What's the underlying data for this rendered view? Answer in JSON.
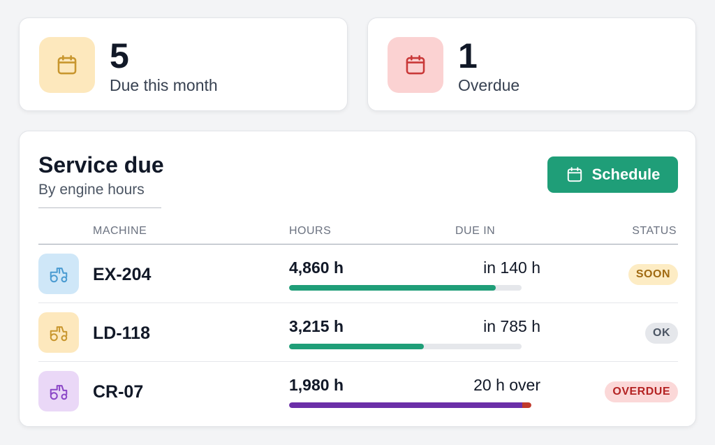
{
  "stats": [
    {
      "value": "5",
      "label": "Due this month",
      "icon": "calendar-icon",
      "icon_color": "#c8962e",
      "icon_bg": "#fde8bd"
    },
    {
      "value": "1",
      "label": "Overdue",
      "icon": "calendar-icon",
      "icon_color": "#c93838",
      "icon_bg": "#fbd2d2"
    }
  ],
  "panel": {
    "title": "Service due",
    "subtitle": "By engine hours",
    "schedule_label": "Schedule",
    "schedule_icon": "calendar-icon",
    "accent": "#1f9e78"
  },
  "table": {
    "headers": {
      "machine": "MACHINE",
      "hours": "HOURS",
      "due_in": "DUE IN",
      "status": "STATUS"
    },
    "rows": [
      {
        "machine": "EX-204",
        "icon": "tractor-icon",
        "icon_color": "#4a9bd1",
        "icon_bg": "#cfe7f8",
        "hours": "4,860 h",
        "due_in": "in 140 h",
        "progress": 0.89,
        "bar_color": "#1f9e78",
        "status": "SOON",
        "status_color": "#a06a12",
        "status_bg": "#fdecc4"
      },
      {
        "machine": "LD-118",
        "icon": "tractor-icon",
        "icon_color": "#c8962e",
        "icon_bg": "#fde8bd",
        "hours": "3,215 h",
        "due_in": "in 785 h",
        "progress": 0.58,
        "bar_color": "#1f9e78",
        "status": "OK",
        "status_color": "#4b5563",
        "status_bg": "#e5e7eb"
      },
      {
        "machine": "CR-07",
        "icon": "tractor-icon",
        "icon_color": "#8b47c7",
        "icon_bg": "#ead8f7",
        "hours": "1,980 h",
        "due_in": "20 h over",
        "progress": 1.0,
        "overage": 0.01,
        "bar_color": "#6b2fa8",
        "over_color": "#c0392b",
        "status": "OVERDUE",
        "status_color": "#b42323",
        "status_bg": "#fbd8d8"
      }
    ]
  }
}
